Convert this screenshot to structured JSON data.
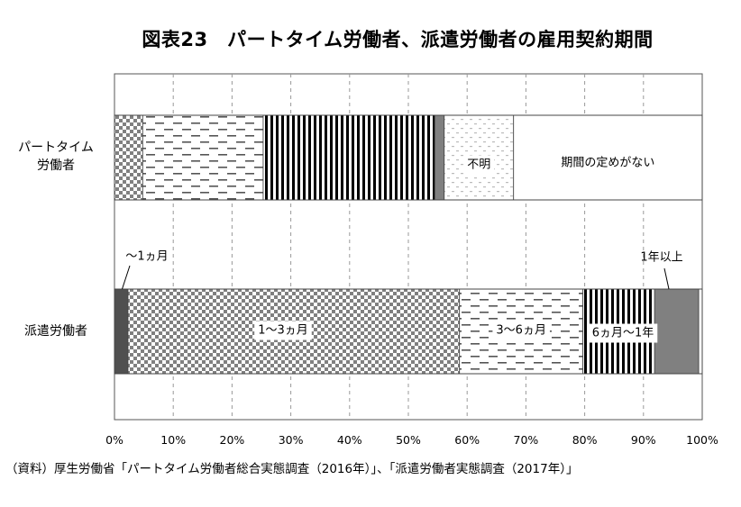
{
  "chart_data": {
    "type": "bar",
    "orientation": "horizontal",
    "stacked": "percent",
    "title": "図表23　パートタイム労働者、派遣労働者の雇用契約期間",
    "source": "（資料）厚生労働省「パートタイム労働者総合実態調査（2016年）」、「派遣労働者実態調査（2017年）」",
    "xlim": [
      0,
      100
    ],
    "x_ticks": [
      "0%",
      "10%",
      "20%",
      "30%",
      "40%",
      "50%",
      "60%",
      "70%",
      "80%",
      "90%",
      "100%"
    ],
    "grid": "vertical dashed",
    "rows": [
      {
        "label_lines": [
          "パートタイム",
          "労働者"
        ],
        "segments": [
          {
            "label": "",
            "value": 4.8,
            "pattern": "checker"
          },
          {
            "label": "",
            "value": 20.5,
            "pattern": "dashes"
          },
          {
            "label": "",
            "value": 29.2,
            "pattern": "vstripes"
          },
          {
            "label": "",
            "value": 1.6,
            "pattern": "solidgray"
          },
          {
            "label": "不明",
            "value": 11.8,
            "pattern": "dots"
          },
          {
            "label": "期間の定めがない",
            "value": 32.1,
            "pattern": "white"
          }
        ]
      },
      {
        "label_lines": [
          "派遣労働者"
        ],
        "segments": [
          {
            "label": "～1ヵ月",
            "value": 2.3,
            "pattern": "darkgray"
          },
          {
            "label": "1～3ヵ月",
            "value": 56.4,
            "pattern": "checker"
          },
          {
            "label": "3～6ヵ月",
            "value": 21.0,
            "pattern": "dashes"
          },
          {
            "label": "6ヵ月～1年",
            "value": 12.2,
            "pattern": "vstripes"
          },
          {
            "label": "1年以上",
            "value": 7.5,
            "pattern": "gray"
          },
          {
            "label": "",
            "value": 0.6,
            "pattern": "white"
          }
        ]
      }
    ],
    "colors": {
      "checker_dark": "#808080",
      "checker_light": "#ffffff",
      "stripe": "#000000",
      "solidgray": "#808080",
      "darkgray": "#505050",
      "gray": "#808080",
      "grid": "#999999",
      "border": "#555555"
    }
  }
}
